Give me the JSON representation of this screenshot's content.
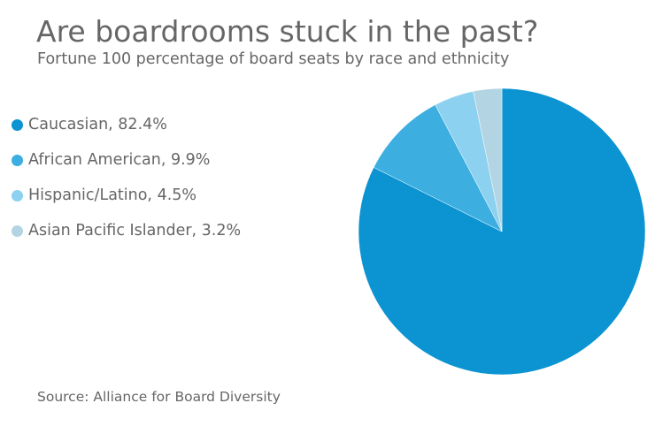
{
  "chart_data": {
    "type": "pie",
    "title": "Are boardrooms stuck in the past?",
    "subtitle": "Fortune 100 percentage of board seats by race and ethnicity",
    "source": "Source: Alliance for Board Diversity",
    "legend_position": "left",
    "slices": [
      {
        "label": "Caucasian",
        "value": 82.4,
        "legend_text": "Caucasian, 82.4%",
        "color": "#0b93d2"
      },
      {
        "label": "African American",
        "value": 9.9,
        "legend_text": "African American, 9.9%",
        "color": "#3caee0"
      },
      {
        "label": "Hispanic/Latino",
        "value": 4.5,
        "legend_text": "Hispanic/Latino, 4.5%",
        "color": "#8dd1f0"
      },
      {
        "label": "Asian Pacific Islander",
        "value": 3.2,
        "legend_text": "Asian Pacific Islander, 3.2%",
        "color": "#b3d4e3"
      }
    ]
  }
}
